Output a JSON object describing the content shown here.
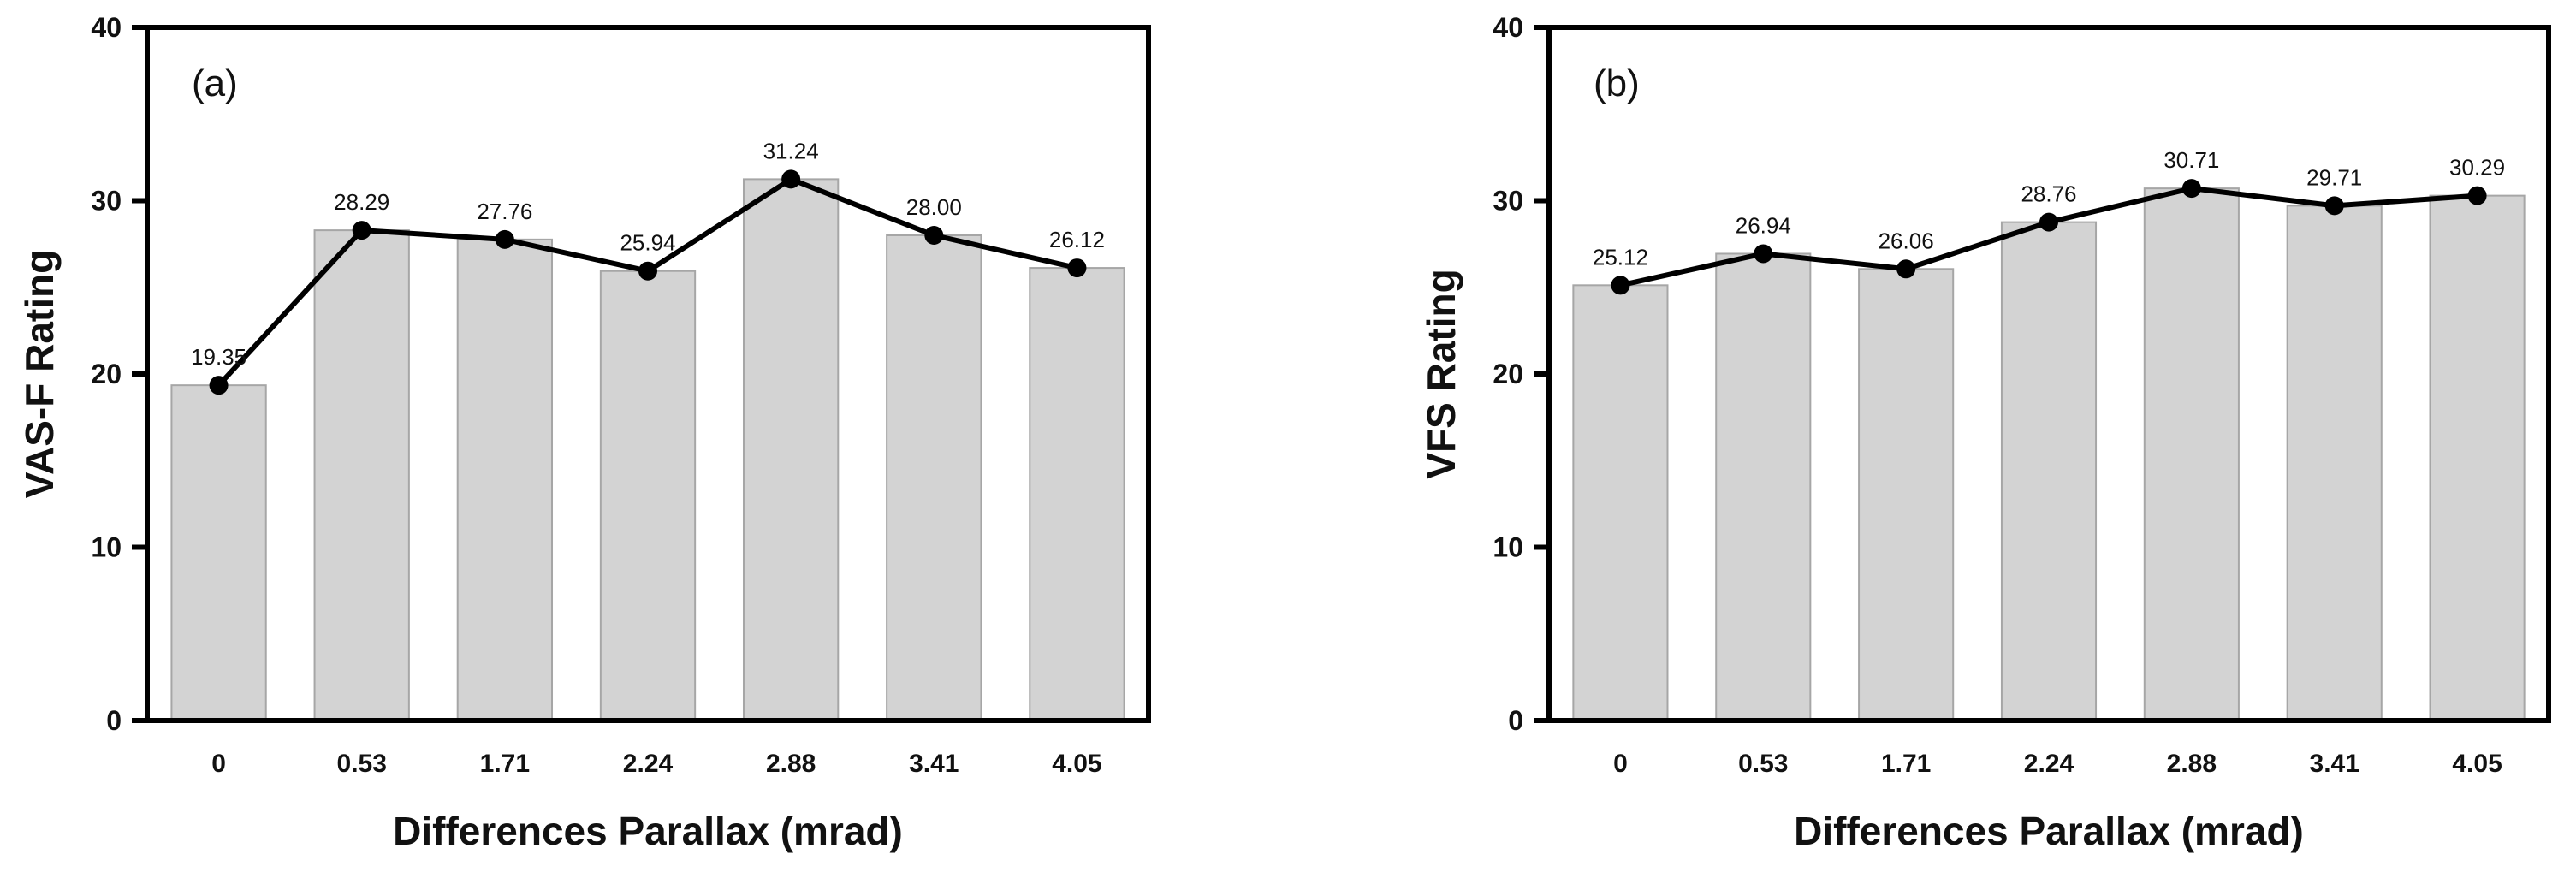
{
  "chart_data": [
    {
      "type": "bar",
      "panel_label": "(a)",
      "categories": [
        "0",
        "0.53",
        "1.71",
        "2.24",
        "2.88",
        "3.41",
        "4.05"
      ],
      "values": [
        19.35,
        28.29,
        27.76,
        25.94,
        31.24,
        28.0,
        26.12
      ],
      "value_labels": [
        "19.35",
        "28.29",
        "27.76",
        "25.94",
        "31.24",
        "28.00",
        "26.12"
      ],
      "line_overlay": true,
      "xlabel": "Differences Parallax (mrad)",
      "ylabel": "VAS-F Rating",
      "ylim": [
        0,
        40
      ],
      "yticks": [
        "0",
        "10",
        "20",
        "30",
        "40"
      ],
      "grid": false
    },
    {
      "type": "bar",
      "panel_label": "(b)",
      "categories": [
        "0",
        "0.53",
        "1.71",
        "2.24",
        "2.88",
        "3.41",
        "4.05"
      ],
      "values": [
        25.12,
        26.94,
        26.06,
        28.76,
        30.71,
        29.71,
        30.29
      ],
      "value_labels": [
        "25.12",
        "26.94",
        "26.06",
        "28.76",
        "30.71",
        "29.71",
        "30.29"
      ],
      "line_overlay": true,
      "xlabel": "Differences Parallax (mrad)",
      "ylabel": "VFS Rating",
      "ylim": [
        0,
        40
      ],
      "yticks": [
        "0",
        "10",
        "20",
        "30",
        "40"
      ],
      "grid": false
    }
  ],
  "colors": {
    "bar_fill": "#d3d3d3",
    "bar_stroke": "#a6a6a6",
    "line": "#000000",
    "axis": "#000000",
    "text": "#111111"
  }
}
